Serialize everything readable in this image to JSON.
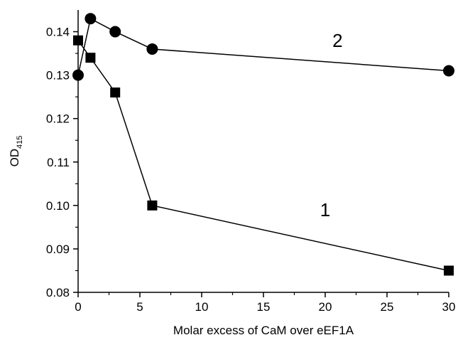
{
  "chart_data": {
    "type": "line",
    "xlabel": "Molar excess of CaM over eEF1A",
    "ylabel": {
      "main": "OD",
      "sub": "415"
    },
    "xlim": [
      0,
      30
    ],
    "ylim": [
      0.08,
      0.145
    ],
    "xticks": [
      0,
      5,
      10,
      15,
      20,
      25,
      30
    ],
    "yticks": [
      0.08,
      0.09,
      0.1,
      0.11,
      0.12,
      0.13,
      0.14
    ],
    "xtick_labels": [
      "0",
      "5",
      "10",
      "15",
      "20",
      "25",
      "30"
    ],
    "ytick_labels": [
      "0.08",
      "0.09",
      "0.10",
      "0.11",
      "0.12",
      "0.13",
      "0.14"
    ],
    "grid": false,
    "series": [
      {
        "name": "1",
        "marker": "square",
        "x": [
          0,
          1,
          3,
          6,
          30
        ],
        "y": [
          0.138,
          0.134,
          0.126,
          0.1,
          0.085
        ]
      },
      {
        "name": "2",
        "marker": "circle",
        "x": [
          0,
          1,
          3,
          6,
          30
        ],
        "y": [
          0.13,
          0.143,
          0.14,
          0.136,
          0.131
        ]
      }
    ]
  }
}
